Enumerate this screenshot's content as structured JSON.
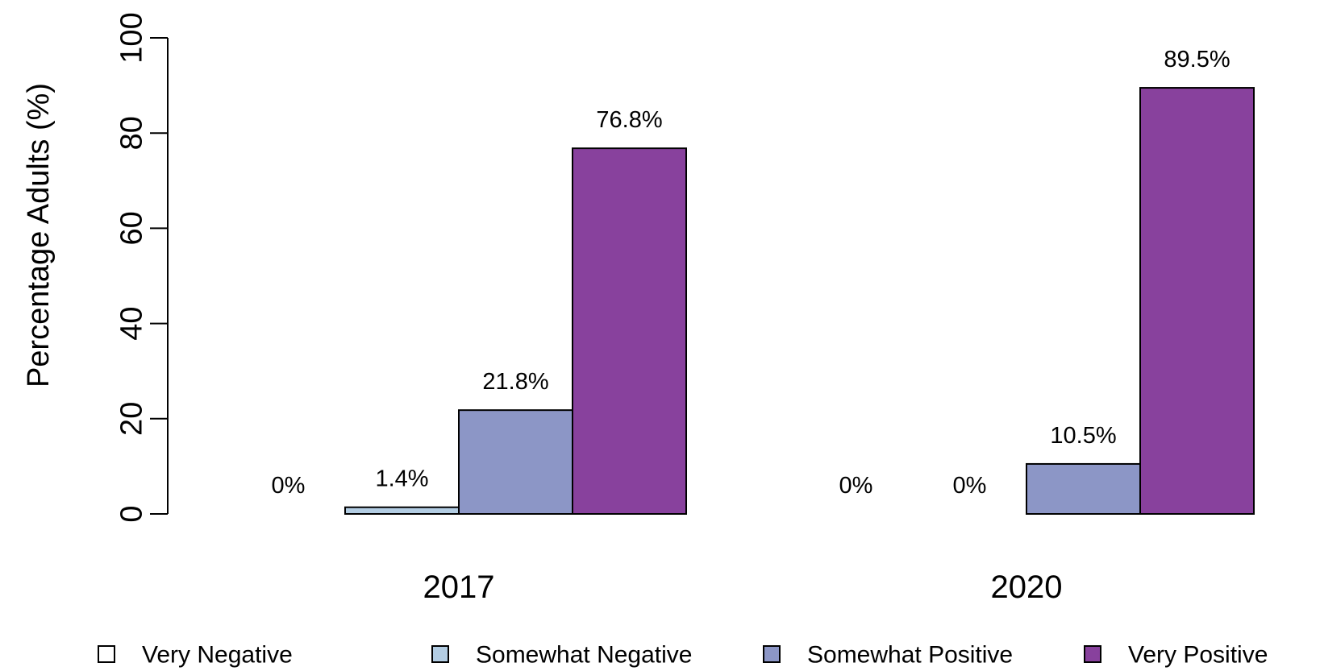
{
  "chart_data": {
    "type": "bar",
    "title": "",
    "xlabel": "",
    "ylabel": "Percentage Adults (%)",
    "ylim": [
      0,
      100
    ],
    "yticks": [
      0,
      20,
      40,
      60,
      80,
      100
    ],
    "grid": false,
    "legend_position": "bottom",
    "categories": [
      "2017",
      "2020"
    ],
    "series": [
      {
        "name": "Very Negative",
        "color": "#FFFFFF",
        "values": [
          0,
          0
        ],
        "labels": [
          "0%",
          "0%"
        ]
      },
      {
        "name": "Somewhat Negative",
        "color": "#B3CDE3",
        "values": [
          1.4,
          0
        ],
        "labels": [
          "1.4%",
          "0%"
        ]
      },
      {
        "name": "Somewhat Positive",
        "color": "#8C96C6",
        "values": [
          21.8,
          10.5
        ],
        "labels": [
          "21.8%",
          "10.5%"
        ]
      },
      {
        "name": "Very Positive",
        "color": "#88419D",
        "values": [
          76.8,
          89.5
        ],
        "labels": [
          "76.8%",
          "89.5%"
        ]
      }
    ]
  }
}
